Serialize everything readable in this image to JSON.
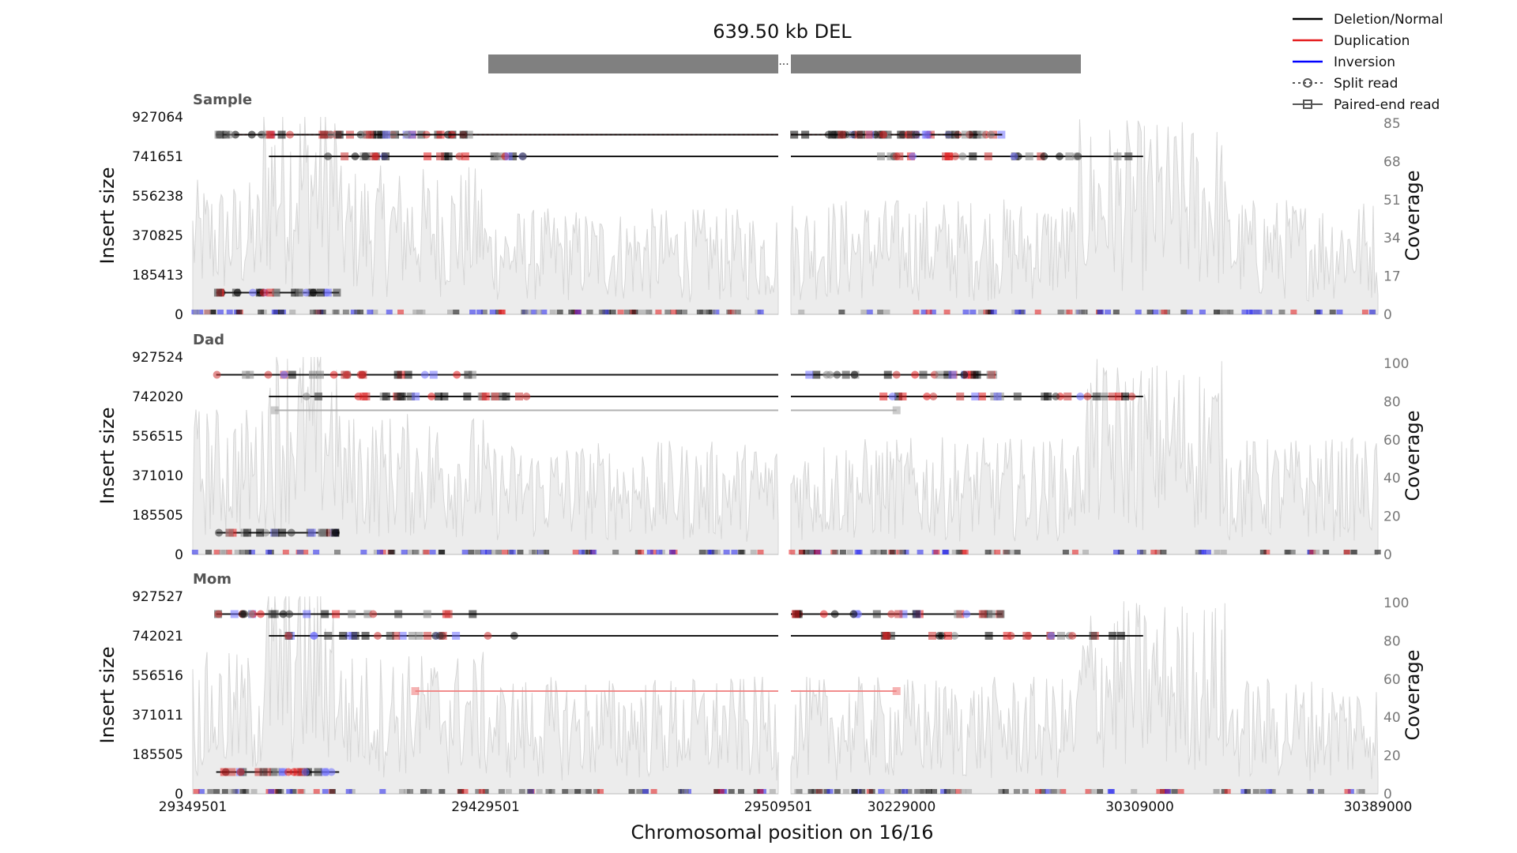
{
  "chart_data": {
    "type": "line",
    "title": "639.50 kb DEL",
    "xlabel": "Chromosomal position on 16/16",
    "x_ticks_left": [
      "29349501",
      "29429501",
      "29509501"
    ],
    "x_ticks_right": [
      "30229000",
      "30309000",
      "30389000"
    ],
    "legend": {
      "placement": "top-right",
      "entries": [
        {
          "label": "Deletion/Normal",
          "color": "#000000",
          "style": "line"
        },
        {
          "label": "Duplication",
          "color": "#e41a1c",
          "style": "line"
        },
        {
          "label": "Inversion",
          "color": "#0000ff",
          "style": "line"
        },
        {
          "label": "Split read",
          "color": "#555555",
          "style": "dotted-circle"
        },
        {
          "label": "Paired-end read",
          "color": "#555555",
          "style": "solid-square"
        }
      ]
    },
    "panels": [
      {
        "name": "Sample",
        "ylabel": "Insert size",
        "y2label": "Coverage",
        "y_ticks": [
          "927064",
          "741651",
          "556238",
          "370825",
          "185413",
          "0"
        ],
        "y2_ticks": [
          "85",
          "68",
          "51",
          "34",
          "17",
          "0"
        ],
        "cov_max": 85,
        "cov_levels": [
          [
            0,
            0.28,
            0.38
          ],
          [
            0.12,
            0.25,
            0.65
          ],
          [
            0.25,
            0.5,
            0.42
          ],
          [
            0.5,
            1,
            0.3
          ]
        ],
        "reads": [
          {
            "y": 0.91,
            "x1": 0.04,
            "x2": 1.36,
            "color": "#e41a1c",
            "dash": true
          },
          {
            "y": 0.91,
            "x1": 0.04,
            "x2": 1.36,
            "color": "#000000",
            "dash": false
          },
          {
            "y": 0.8,
            "x1": 0.13,
            "x2": 1.6,
            "color": "#000000",
            "dash": false
          },
          {
            "y": 0.11,
            "x1": 0.04,
            "x2": 0.25,
            "color": "#000000",
            "dash": false
          }
        ]
      },
      {
        "name": "Dad",
        "ylabel": "Insert size",
        "y2label": "Coverage",
        "y_ticks": [
          "927524",
          "742020",
          "556515",
          "371010",
          "185505",
          "0"
        ],
        "y2_ticks": [
          "100",
          "80",
          "60",
          "40",
          "20",
          "0"
        ],
        "cov_max": 100,
        "cov_levels": [
          [
            0,
            0.28,
            0.42
          ],
          [
            0.12,
            0.25,
            0.62
          ],
          [
            0.25,
            0.5,
            0.4
          ],
          [
            0.5,
            1,
            0.32
          ]
        ],
        "reads": [
          {
            "y": 0.91,
            "x1": 0.04,
            "x2": 1.35,
            "color": "#000000",
            "dash": false
          },
          {
            "y": 0.8,
            "x1": 0.13,
            "x2": 1.6,
            "color": "#000000",
            "dash": false
          },
          {
            "y": 0.73,
            "x1": 0.14,
            "x2": 1.18,
            "color": "#aaaaaa",
            "dash": false
          },
          {
            "y": 0.11,
            "x1": 0.04,
            "x2": 0.25,
            "color": "#000000",
            "dash": false
          }
        ]
      },
      {
        "name": "Mom",
        "ylabel": "Insert size",
        "y2label": "Coverage",
        "y_ticks": [
          "927527",
          "742021",
          "556516",
          "371011",
          "185505",
          "0"
        ],
        "y2_ticks": [
          "100",
          "80",
          "60",
          "40",
          "20",
          "0"
        ],
        "cov_max": 100,
        "cov_levels": [
          [
            0,
            0.28,
            0.4
          ],
          [
            0.12,
            0.25,
            0.62
          ],
          [
            0.25,
            0.5,
            0.4
          ],
          [
            0.5,
            1,
            0.33
          ]
        ],
        "reads": [
          {
            "y": 0.91,
            "x1": 0.04,
            "x2": 1.36,
            "color": "#000000",
            "dash": false
          },
          {
            "y": 0.8,
            "x1": 0.13,
            "x2": 1.6,
            "color": "#000000",
            "dash": false
          },
          {
            "y": 0.52,
            "x1": 0.38,
            "x2": 1.18,
            "color": "#f08080",
            "dash": false
          },
          {
            "y": 0.11,
            "x1": 0.04,
            "x2": 0.25,
            "color": "#000000",
            "dash": false
          }
        ]
      }
    ],
    "grid": false
  }
}
